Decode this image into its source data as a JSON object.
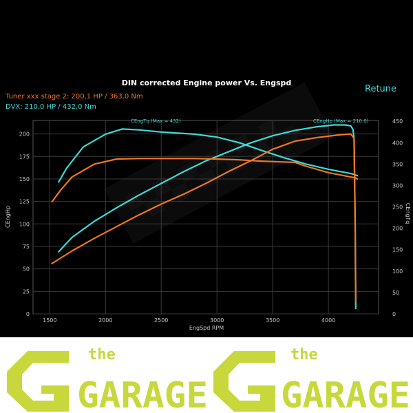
{
  "chart_data": {
    "type": "line",
    "title": "DIN corrected Engine power Vs. Engspd",
    "xlabel": "EngSpd RPM",
    "ylabel_left": "CEngHp",
    "ylabel_right": "CEngTq",
    "xlim": [
      1350,
      4450
    ],
    "ylim_left": [
      0,
      215
    ],
    "ylim_right": [
      0,
      452
    ],
    "x_ticks": [
      "1500",
      "2000",
      "2500",
      "3000",
      "3500",
      "4000"
    ],
    "y_ticks_left": [
      "0",
      "25",
      "50",
      "75",
      "100",
      "125",
      "150",
      "175",
      "200"
    ],
    "y_ticks_right": [
      "0",
      "50",
      "100",
      "150",
      "200",
      "250",
      "300",
      "350",
      "400",
      "450"
    ],
    "grid": true,
    "legend_entries": [
      {
        "text": "Tuner xxx stage 2: 200,1 HP / 363,0 Nm",
        "color": "#f07820"
      },
      {
        "text": "DVX:  210,0 HP / 432,0 Nm",
        "color": "#3fd8d8"
      }
    ],
    "annotations": [
      {
        "text": "CEngTq (Max = 432)",
        "color": "#3fd8d8"
      },
      {
        "text": "CEngHp (Max = 210.0)",
        "color": "#3fd8d8"
      }
    ],
    "corner_text": "Retune",
    "series": [
      {
        "metric": "hp",
        "axis": "left",
        "color": "#3fd8d8",
        "x": [
          1580,
          1700,
          1900,
          2100,
          2300,
          2500,
          2700,
          2900,
          3100,
          3300,
          3500,
          3700,
          3900,
          4050,
          4150,
          4200,
          4220,
          4230,
          4240,
          4245
        ],
        "y": [
          69,
          85,
          103,
          118,
          132,
          145,
          158,
          170,
          180,
          190,
          198,
          204,
          208,
          210,
          210,
          209,
          205,
          195,
          100,
          6
        ]
      },
      {
        "metric": "torque",
        "axis": "right",
        "color": "#3fd8d8",
        "x": [
          1580,
          1650,
          1800,
          2000,
          2150,
          2300,
          2500,
          2800,
          3000,
          3200,
          3400,
          3600,
          3800,
          4000,
          4200,
          4240,
          4260
        ],
        "y": [
          308,
          340,
          390,
          420,
          432,
          430,
          425,
          420,
          413,
          400,
          382,
          365,
          350,
          338,
          328,
          325,
          323
        ]
      },
      {
        "metric": "hp",
        "axis": "left",
        "color": "#f07820",
        "x": [
          1520,
          1700,
          1900,
          2100,
          2300,
          2500,
          2700,
          2900,
          3100,
          3300,
          3500,
          3700,
          3900,
          4100,
          4200,
          4230,
          4240,
          4245
        ],
        "y": [
          56,
          70,
          84,
          97,
          110,
          122,
          133,
          145,
          158,
          170,
          183,
          192,
          196,
          199,
          200,
          195,
          100,
          14
        ]
      },
      {
        "metric": "torque",
        "axis": "right",
        "color": "#f07820",
        "x": [
          1520,
          1600,
          1700,
          1900,
          2100,
          2300,
          2500,
          2800,
          3000,
          3200,
          3400,
          3600,
          3700,
          3800,
          4000,
          4200,
          4245,
          4260
        ],
        "y": [
          262,
          290,
          320,
          350,
          362,
          363,
          363,
          363,
          362,
          360,
          357,
          355,
          354,
          345,
          330,
          320,
          318,
          315
        ]
      }
    ]
  },
  "banner": {
    "logo_left": {
      "small": "the",
      "big": "GARAGE"
    },
    "logo_right": {
      "small": "the",
      "big": "GARAGE"
    },
    "bg_color": "#ffffff",
    "logo_color": "#c8d83c"
  }
}
